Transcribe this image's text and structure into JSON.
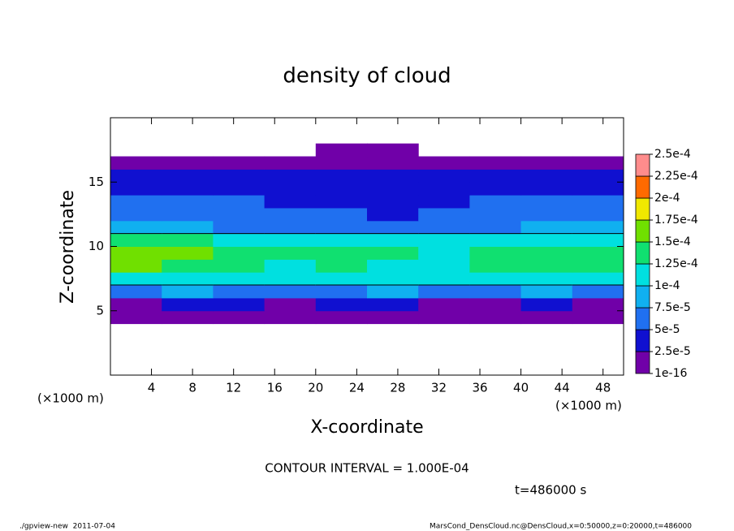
{
  "chart_data": {
    "type": "heatmap",
    "title": "density of cloud",
    "x_label": "X-coordinate",
    "y_label": "Z-coordinate",
    "x_units": [
      "(×1000 m)",
      "(×1000 m)"
    ],
    "contour_note": "CONTOUR INTERVAL = 1.000E-04",
    "time_note": "t=486000 s",
    "footer_left": "./gpview-new  2011-07-04",
    "footer_right": "MarsCond_DensCloud.nc@DensCloud,x=0:50000,z=0:20000,t=486000",
    "xlim": [
      0,
      50
    ],
    "ylim": [
      0,
      20
    ],
    "xticks": [
      4,
      8,
      12,
      16,
      20,
      24,
      28,
      32,
      36,
      40,
      44,
      48
    ],
    "yticks": [
      5,
      10,
      15
    ],
    "x": [
      2.5,
      7.5,
      12.5,
      17.5,
      22.5,
      27.5,
      32.5,
      37.5,
      42.5,
      47.5
    ],
    "z": [
      0.5,
      1.5,
      2.5,
      3.5,
      4.5,
      5.5,
      6.5,
      7.5,
      8.5,
      9.5,
      10.5,
      11.5,
      12.5,
      13.5,
      14.5,
      15.5,
      16.5,
      17.5,
      18.5,
      19.5
    ],
    "values": [
      [
        0,
        0,
        0,
        0,
        0,
        0,
        0,
        0,
        0,
        0
      ],
      [
        0,
        0,
        0,
        0,
        0,
        0,
        0,
        0,
        0,
        0
      ],
      [
        0,
        0,
        0,
        0,
        0,
        0,
        0,
        0,
        0,
        0
      ],
      [
        0,
        0,
        0,
        0,
        0,
        0,
        0,
        0,
        0,
        0
      ],
      [
        1e-06,
        1e-06,
        1e-06,
        1e-06,
        1e-06,
        1e-06,
        1e-06,
        1e-06,
        1e-06,
        1e-06
      ],
      [
        2e-05,
        2.5e-05,
        3e-05,
        2e-05,
        2.5e-05,
        3e-05,
        2e-05,
        2e-05,
        2.5e-05,
        2e-05
      ],
      [
        7e-05,
        8e-05,
        7e-05,
        6.5e-05,
        7e-05,
        8e-05,
        7e-05,
        7e-05,
        8e-05,
        7e-05
      ],
      [
        0.00011,
        0.000115,
        0.000105,
        0.0001,
        0.00011,
        0.000105,
        0.0001,
        0.000105,
        0.00011,
        0.00011
      ],
      [
        0.00015,
        0.000145,
        0.00013,
        0.00012,
        0.000125,
        0.00012,
        0.00012,
        0.00013,
        0.000135,
        0.00013
      ],
      [
        0.00016,
        0.00015,
        0.000135,
        0.000125,
        0.00013,
        0.000125,
        0.00012,
        0.00013,
        0.000135,
        0.000135
      ],
      [
        0.00013,
        0.000125,
        0.000115,
        0.00011,
        0.00011,
        0.000105,
        0.000105,
        0.00011,
        0.000105,
        0.00012
      ],
      [
        8e-05,
        7.5e-05,
        7e-05,
        7e-05,
        6.5e-05,
        6e-05,
        6.5e-05,
        7e-05,
        7.5e-05,
        8e-05
      ],
      [
        6e-05,
        5.5e-05,
        6e-05,
        5.5e-05,
        5e-05,
        4e-05,
        5e-05,
        5.5e-05,
        5.5e-05,
        6e-05
      ],
      [
        5e-05,
        5e-05,
        5e-05,
        4.5e-05,
        4.5e-05,
        3.5e-05,
        4.5e-05,
        5e-05,
        5e-05,
        5e-05
      ],
      [
        4e-05,
        4e-05,
        4.5e-05,
        4e-05,
        4e-05,
        3.5e-05,
        4e-05,
        4e-05,
        4e-05,
        4e-05
      ],
      [
        3e-05,
        3e-05,
        3e-05,
        3e-05,
        3e-05,
        3e-05,
        3e-05,
        3e-05,
        3e-05,
        3e-05
      ],
      [
        1e-06,
        1e-06,
        1e-06,
        1e-06,
        1e-06,
        1e-06,
        1e-06,
        1e-06,
        1e-06,
        1e-06
      ],
      [
        0,
        0,
        0,
        0,
        1e-06,
        1e-06,
        0,
        0,
        0,
        0
      ],
      [
        0,
        0,
        0,
        0,
        0,
        0,
        0,
        0,
        0,
        0
      ],
      [
        0,
        0,
        0,
        0,
        0,
        0,
        0,
        0,
        0,
        0
      ]
    ],
    "contour_level": 0.0001,
    "colorbar_ticks": [
      {
        "value": 1e-16,
        "label": "1e-16"
      },
      {
        "value": 2.5e-05,
        "label": "2.5e-5"
      },
      {
        "value": 5e-05,
        "label": "5e-5"
      },
      {
        "value": 7.5e-05,
        "label": "7.5e-5"
      },
      {
        "value": 0.0001,
        "label": "1e-4"
      },
      {
        "value": 0.000125,
        "label": "1.25e-4"
      },
      {
        "value": 0.00015,
        "label": "1.5e-4"
      },
      {
        "value": 0.000175,
        "label": "1.75e-4"
      },
      {
        "value": 0.0002,
        "label": "2e-4"
      },
      {
        "value": 0.000225,
        "label": "2.25e-4"
      },
      {
        "value": 0.00025,
        "label": "2.5e-4"
      }
    ],
    "colors": [
      "#7000a8",
      "#1010d0",
      "#2070f0",
      "#10b0f0",
      "#00e0e0",
      "#10e070",
      "#70e000",
      "#f0e800",
      "#ff6a00",
      "#ff8c8c"
    ]
  }
}
